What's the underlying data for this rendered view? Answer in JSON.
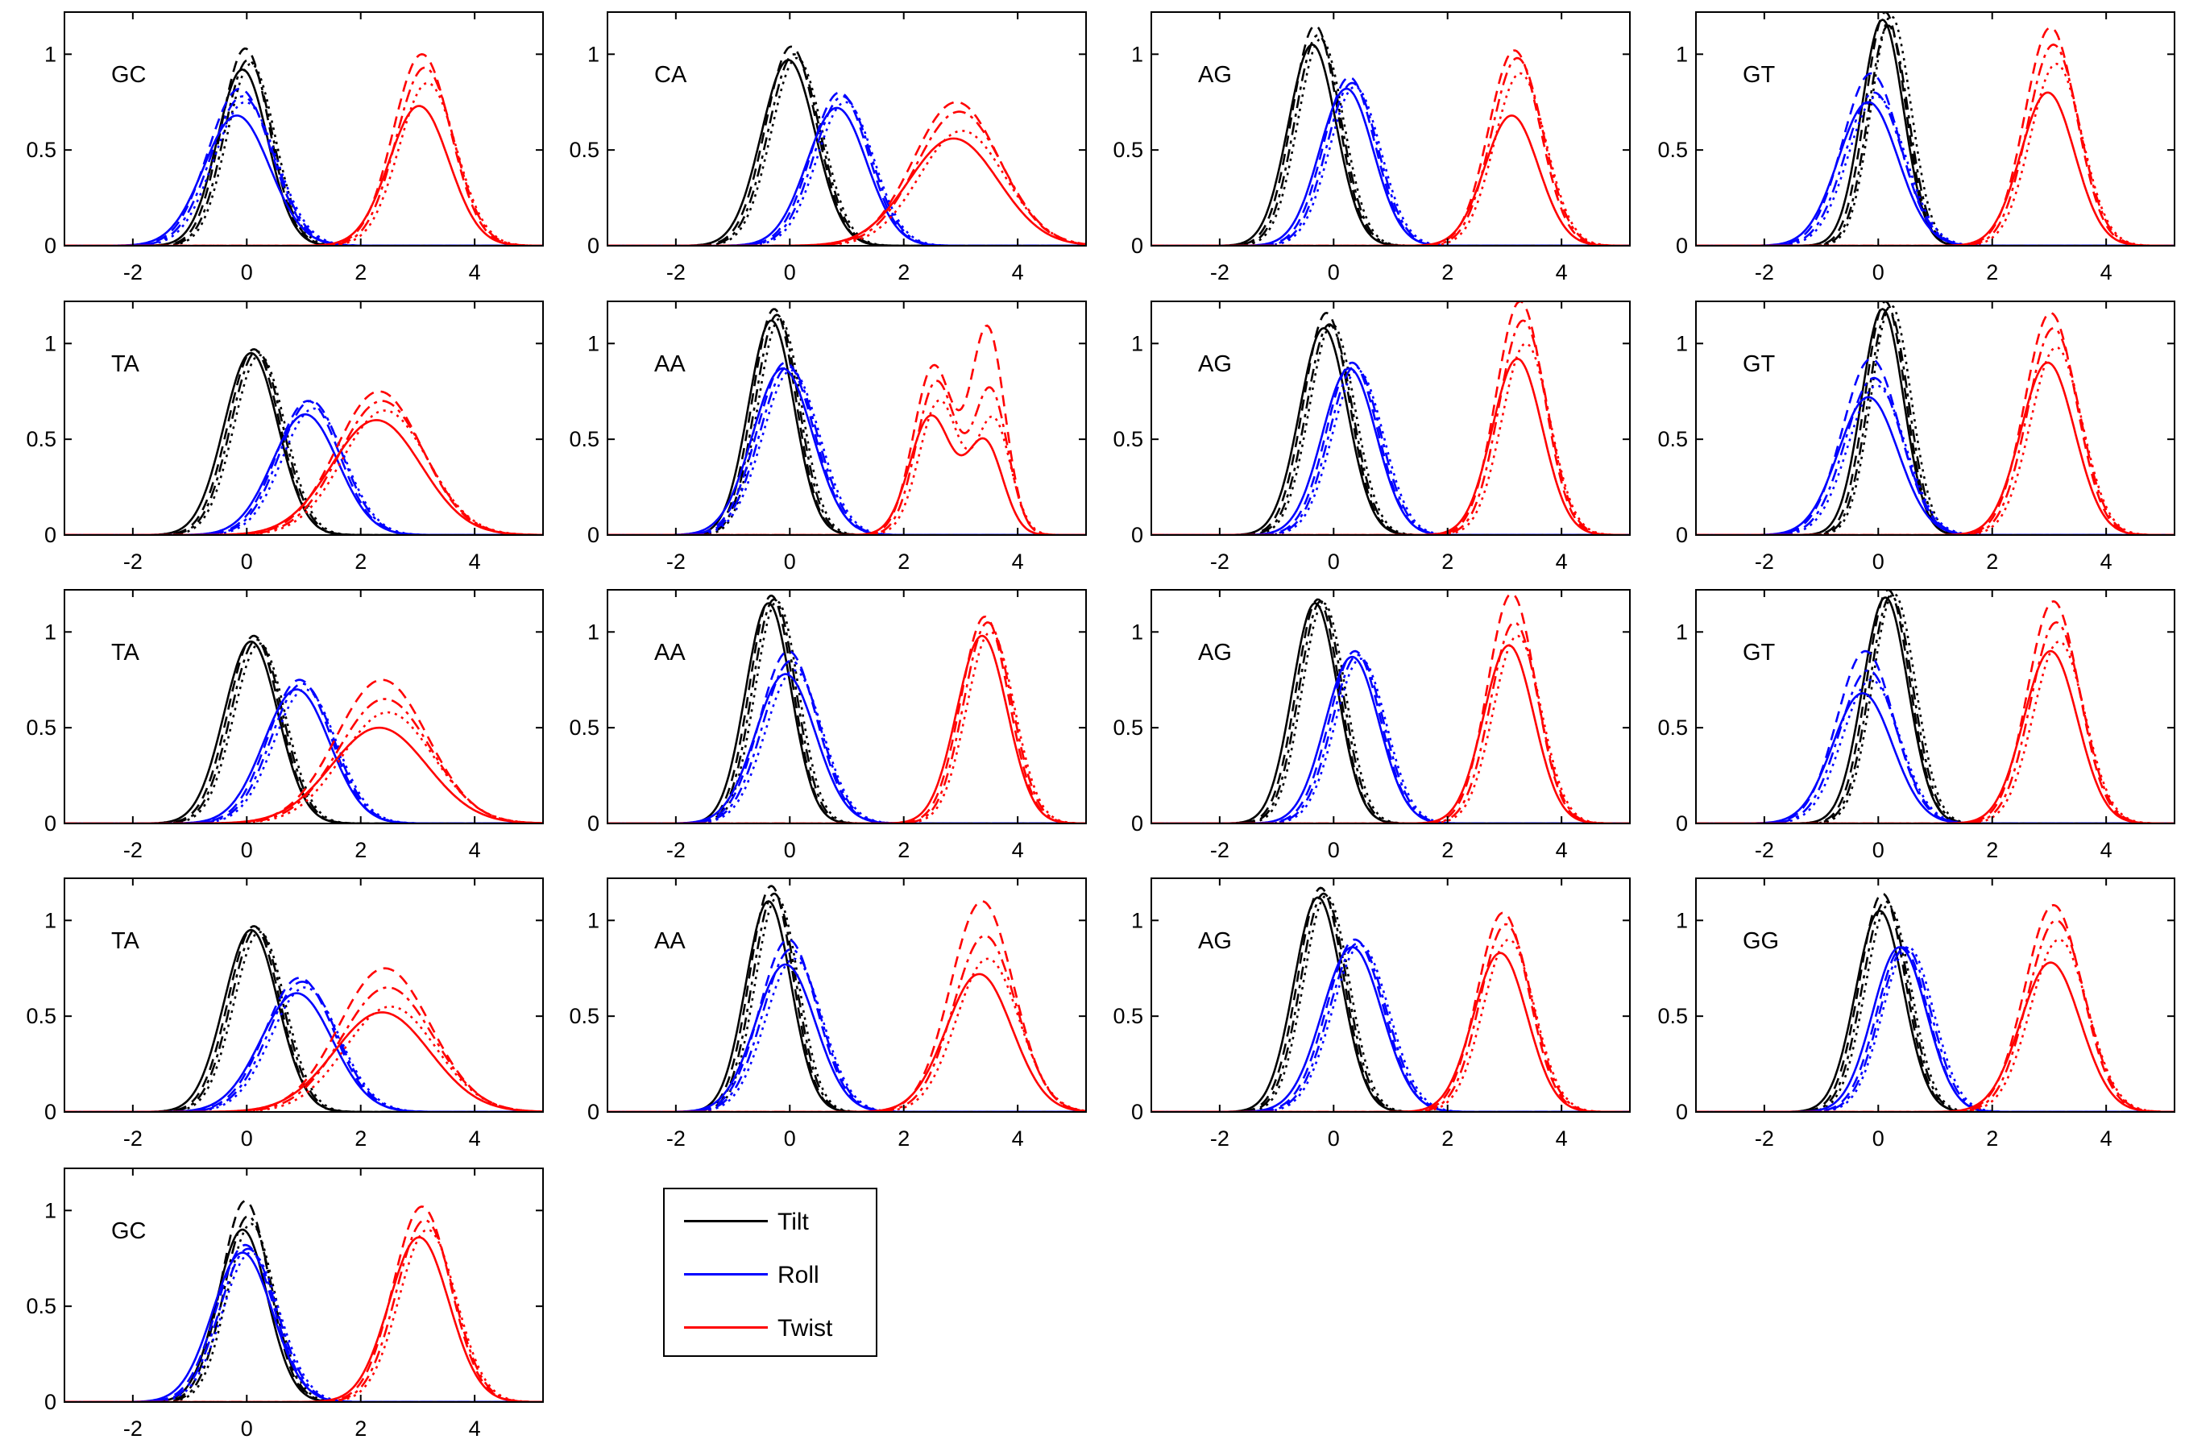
{
  "chart_data": {
    "type": "line",
    "layout": "5 rows x 4 columns small multiples; last row has a single panel followed by the legend",
    "xlim": [
      -3.2,
      5.2
    ],
    "ylim": [
      0,
      1.22
    ],
    "xticks": [
      -2,
      0,
      2,
      4
    ],
    "yticks": [
      0,
      0.5,
      1
    ],
    "yticklabels": [
      "0",
      "0.5",
      "1"
    ],
    "grid": false,
    "legend_placement": "bottom, right of the last panel",
    "line_styles": [
      "solid",
      "dashed",
      "dashdot",
      "dotted"
    ],
    "colors": {
      "Tilt": "#000000",
      "Roll": "#0000ff",
      "Twist": "#ff0000"
    },
    "legend": [
      {
        "label": "Tilt",
        "color": "#000000"
      },
      {
        "label": "Roll",
        "color": "#0000ff"
      },
      {
        "label": "Twist",
        "color": "#ff0000"
      }
    ],
    "note_series": "each panel: 3 parameters (Tilt, Roll, Twist) x 4 line styles; each curve is a Gaussian-like peak given as center mu, width sigma, height h (optionally bimodal)",
    "panels": [
      {
        "label": "GC",
        "curves": {
          "Tilt": [
            {
              "mu": 0.0,
              "sigma": 0.42,
              "h": [
                0.92,
                1.03,
                0.97,
                0.95
              ]
            }
          ],
          "Roll": [
            {
              "mu": -0.1,
              "sigma": 0.55,
              "h": [
                0.68,
                0.82,
                0.78,
                0.75
              ]
            }
          ],
          "Twist": [
            {
              "mu": 3.1,
              "sigma": 0.5,
              "h": [
                0.73,
                1.0,
                0.93,
                0.85
              ]
            }
          ]
        }
      },
      {
        "label": "CA",
        "curves": {
          "Tilt": [
            {
              "mu": 0.05,
              "sigma": 0.45,
              "h": [
                0.97,
                1.04,
                1.0,
                0.98
              ]
            }
          ],
          "Roll": [
            {
              "mu": 0.9,
              "sigma": 0.5,
              "h": [
                0.72,
                0.8,
                0.78,
                0.75
              ]
            }
          ],
          "Twist": [
            {
              "mu": 2.95,
              "sigma": 0.75,
              "h": [
                0.56,
                0.75,
                0.7,
                0.6
              ]
            }
          ]
        }
      },
      {
        "label": "AG",
        "curves": {
          "Tilt": [
            {
              "mu": -0.3,
              "sigma": 0.4,
              "h": [
                1.05,
                1.15,
                1.1,
                1.08
              ]
            }
          ],
          "Roll": [
            {
              "mu": 0.3,
              "sigma": 0.45,
              "h": [
                0.82,
                0.88,
                0.85,
                0.83
              ]
            }
          ],
          "Twist": [
            {
              "mu": 3.2,
              "sigma": 0.45,
              "h": [
                0.68,
                1.02,
                0.98,
                0.9
              ]
            }
          ]
        }
      },
      {
        "label": "GT",
        "curves": {
          "Tilt": [
            {
              "mu": 0.15,
              "sigma": 0.35,
              "h": [
                1.18,
                1.22,
                1.15,
                1.2
              ]
            }
          ],
          "Roll": [
            {
              "mu": -0.1,
              "sigma": 0.5,
              "h": [
                0.75,
                0.9,
                0.8,
                0.78
              ]
            }
          ],
          "Twist": [
            {
              "mu": 3.05,
              "sigma": 0.45,
              "h": [
                0.8,
                1.14,
                1.05,
                0.95
              ]
            }
          ]
        }
      },
      {
        "label": "TA",
        "curves": {
          "Tilt": [
            {
              "mu": 0.15,
              "sigma": 0.45,
              "h": [
                0.95,
                0.97,
                0.96,
                0.94
              ]
            }
          ],
          "Roll": [
            {
              "mu": 1.1,
              "sigma": 0.55,
              "h": [
                0.63,
                0.7,
                0.7,
                0.66
              ]
            }
          ],
          "Twist": [
            {
              "mu": 2.35,
              "sigma": 0.75,
              "h": [
                0.6,
                0.75,
                0.7,
                0.65
              ]
            }
          ]
        }
      },
      {
        "label": "AA",
        "curves": {
          "Tilt": [
            {
              "mu": -0.25,
              "sigma": 0.38,
              "h": [
                1.12,
                1.18,
                1.15,
                1.13
              ]
            }
          ],
          "Roll": [
            {
              "mu": -0.05,
              "sigma": 0.5,
              "h": [
                0.87,
                0.9,
                0.88,
                0.86
              ]
            }
          ],
          "Twist": [
            {
              "mu": 2.55,
              "sigma": 0.35,
              "h": [
                0.62,
                0.88,
                0.8,
                0.7
              ]
            },
            {
              "mu": 3.5,
              "sigma": 0.3,
              "h": [
                0.48,
                1.07,
                0.75,
                0.6
              ]
            }
          ]
        }
      },
      {
        "label": "AG",
        "curves": {
          "Tilt": [
            {
              "mu": -0.1,
              "sigma": 0.4,
              "h": [
                1.08,
                1.16,
                1.1,
                1.1
              ]
            }
          ],
          "Roll": [
            {
              "mu": 0.35,
              "sigma": 0.45,
              "h": [
                0.87,
                0.9,
                0.88,
                0.86
              ]
            }
          ],
          "Twist": [
            {
              "mu": 3.3,
              "sigma": 0.42,
              "h": [
                0.92,
                1.22,
                1.12,
                1.0
              ]
            }
          ]
        }
      },
      {
        "label": "GT",
        "curves": {
          "Tilt": [
            {
              "mu": 0.15,
              "sigma": 0.35,
              "h": [
                1.18,
                1.22,
                1.18,
                1.2
              ]
            }
          ],
          "Roll": [
            {
              "mu": -0.1,
              "sigma": 0.5,
              "h": [
                0.72,
                0.92,
                0.82,
                0.78
              ]
            }
          ],
          "Twist": [
            {
              "mu": 3.05,
              "sigma": 0.45,
              "h": [
                0.9,
                1.16,
                1.08,
                0.98
              ]
            }
          ]
        }
      },
      {
        "label": "TA",
        "curves": {
          "Tilt": [
            {
              "mu": 0.15,
              "sigma": 0.45,
              "h": [
                0.95,
                0.98,
                0.96,
                0.94
              ]
            }
          ],
          "Roll": [
            {
              "mu": 0.95,
              "sigma": 0.55,
              "h": [
                0.7,
                0.75,
                0.73,
                0.7
              ]
            }
          ],
          "Twist": [
            {
              "mu": 2.4,
              "sigma": 0.8,
              "h": [
                0.5,
                0.75,
                0.65,
                0.58
              ]
            }
          ]
        }
      },
      {
        "label": "AA",
        "curves": {
          "Tilt": [
            {
              "mu": -0.3,
              "sigma": 0.38,
              "h": [
                1.15,
                1.19,
                1.17,
                1.16
              ]
            }
          ],
          "Roll": [
            {
              "mu": 0.0,
              "sigma": 0.5,
              "h": [
                0.78,
                0.9,
                0.85,
                0.8
              ]
            }
          ],
          "Twist": [
            {
              "mu": 3.45,
              "sigma": 0.42,
              "h": [
                0.98,
                1.08,
                1.05,
                1.0
              ]
            }
          ]
        }
      },
      {
        "label": "AG",
        "curves": {
          "Tilt": [
            {
              "mu": -0.25,
              "sigma": 0.38,
              "h": [
                1.15,
                1.17,
                1.16,
                1.15
              ]
            }
          ],
          "Roll": [
            {
              "mu": 0.4,
              "sigma": 0.45,
              "h": [
                0.87,
                0.9,
                0.88,
                0.86
              ]
            }
          ],
          "Twist": [
            {
              "mu": 3.15,
              "sigma": 0.42,
              "h": [
                0.93,
                1.2,
                1.05,
                0.98
              ]
            }
          ]
        }
      },
      {
        "label": "GT",
        "curves": {
          "Tilt": [
            {
              "mu": 0.2,
              "sigma": 0.38,
              "h": [
                1.18,
                1.22,
                1.19,
                1.2
              ]
            }
          ],
          "Roll": [
            {
              "mu": -0.2,
              "sigma": 0.5,
              "h": [
                0.68,
                0.9,
                0.8,
                0.75
              ]
            }
          ],
          "Twist": [
            {
              "mu": 3.1,
              "sigma": 0.45,
              "h": [
                0.9,
                1.16,
                1.05,
                0.95
              ]
            }
          ]
        }
      },
      {
        "label": "TA",
        "curves": {
          "Tilt": [
            {
              "mu": 0.15,
              "sigma": 0.45,
              "h": [
                0.95,
                0.97,
                0.96,
                0.94
              ]
            }
          ],
          "Roll": [
            {
              "mu": 0.95,
              "sigma": 0.6,
              "h": [
                0.62,
                0.7,
                0.68,
                0.65
              ]
            }
          ],
          "Twist": [
            {
              "mu": 2.45,
              "sigma": 0.8,
              "h": [
                0.52,
                0.75,
                0.65,
                0.55
              ]
            }
          ]
        }
      },
      {
        "label": "AA",
        "curves": {
          "Tilt": [
            {
              "mu": -0.3,
              "sigma": 0.38,
              "h": [
                1.1,
                1.18,
                1.14,
                1.12
              ]
            }
          ],
          "Roll": [
            {
              "mu": 0.0,
              "sigma": 0.5,
              "h": [
                0.77,
                0.9,
                0.85,
                0.8
              ]
            }
          ],
          "Twist": [
            {
              "mu": 3.4,
              "sigma": 0.55,
              "h": [
                0.72,
                1.1,
                0.92,
                0.8
              ]
            }
          ]
        }
      },
      {
        "label": "AG",
        "curves": {
          "Tilt": [
            {
              "mu": -0.2,
              "sigma": 0.4,
              "h": [
                1.12,
                1.17,
                1.14,
                1.13
              ]
            }
          ],
          "Roll": [
            {
              "mu": 0.4,
              "sigma": 0.5,
              "h": [
                0.86,
                0.9,
                0.88,
                0.87
              ]
            }
          ],
          "Twist": [
            {
              "mu": 3.0,
              "sigma": 0.45,
              "h": [
                0.83,
                1.04,
                0.98,
                0.9
              ]
            }
          ]
        }
      },
      {
        "label": "GG",
        "curves": {
          "Tilt": [
            {
              "mu": 0.1,
              "sigma": 0.4,
              "h": [
                1.05,
                1.14,
                1.1,
                1.08
              ]
            }
          ],
          "Roll": [
            {
              "mu": 0.45,
              "sigma": 0.45,
              "h": [
                0.86,
                0.86,
                0.86,
                0.86
              ]
            }
          ],
          "Twist": [
            {
              "mu": 3.1,
              "sigma": 0.5,
              "h": [
                0.78,
                1.08,
                1.0,
                0.9
              ]
            }
          ]
        }
      },
      {
        "label": "GC",
        "curves": {
          "Tilt": [
            {
              "mu": 0.0,
              "sigma": 0.42,
              "h": [
                0.9,
                1.05,
                0.97,
                0.93
              ]
            }
          ],
          "Roll": [
            {
              "mu": 0.0,
              "sigma": 0.5,
              "h": [
                0.78,
                0.82,
                0.8,
                0.78
              ]
            }
          ],
          "Twist": [
            {
              "mu": 3.1,
              "sigma": 0.5,
              "h": [
                0.86,
                1.02,
                0.95,
                0.9
              ]
            }
          ]
        }
      }
    ]
  }
}
